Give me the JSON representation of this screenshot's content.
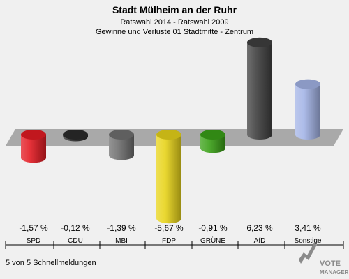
{
  "header": {
    "title": "Stadt Mülheim an der Ruhr",
    "subtitle1": "Ratswahl 2014 - Ratswahl 2009",
    "subtitle2": "Gewinne und Verluste 01 Stadtmitte - Zentrum"
  },
  "footer": {
    "note": "5 von 5 Schnellmeldungen",
    "logo_line1": "VOTE",
    "logo_line2": "MANAGER"
  },
  "chart_data": {
    "type": "bar",
    "title": "Stadt Mülheim an der Ruhr",
    "subtitle": "Ratswahl 2014 - Ratswahl 2009 / Gewinne und Verluste 01 Stadtmitte - Zentrum",
    "xlabel": "",
    "ylabel": "",
    "grid": false,
    "categories": [
      "SPD",
      "CDU",
      "MBI",
      "FDP",
      "GRÜNE",
      "AfD",
      "Sonstige"
    ],
    "values": [
      -1.57,
      -0.12,
      -1.39,
      -5.67,
      -0.91,
      6.23,
      3.41
    ],
    "value_labels": [
      "-1,57 %",
      "-0,12 %",
      "-1,39 %",
      "-5,67 %",
      "-0,91 %",
      "6,23 %",
      "3,41 %"
    ],
    "colors": [
      "#e31b23",
      "#2a2a2a",
      "#707070",
      "#e8d41a",
      "#3aa017",
      "#404040",
      "#a4b4e6"
    ]
  }
}
